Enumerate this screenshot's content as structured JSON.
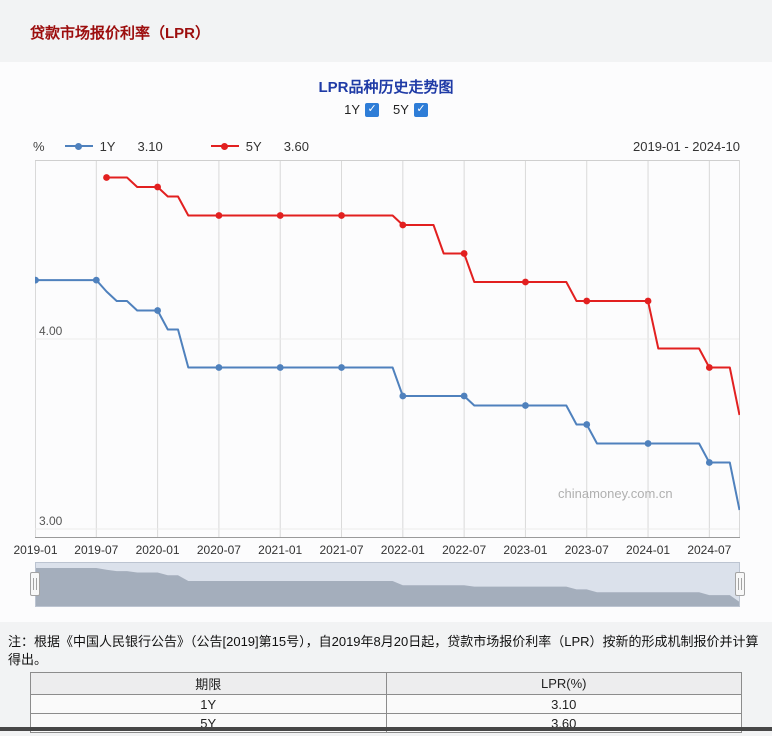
{
  "page_title": "贷款市场报价利率（LPR）",
  "controls": {
    "toggles": [
      {
        "label": "1Y",
        "checked": true
      },
      {
        "label": "5Y",
        "checked": true
      }
    ],
    "date_range": "2019-01 - 2024-10"
  },
  "chart_data": {
    "type": "line",
    "title": "LPR品种历史走势图",
    "y_label": "%",
    "xlabel": "",
    "ylim": [
      2.95,
      4.95
    ],
    "grid": "vertical",
    "legend_position": "top-left",
    "watermark": "chinamoney.com.cn",
    "x_ticks": [
      "2019-01",
      "2019-07",
      "2020-01",
      "2020-07",
      "2021-01",
      "2021-07",
      "2022-01",
      "2022-07",
      "2023-01",
      "2023-07",
      "2024-01",
      "2024-07"
    ],
    "y_ticks": [
      {
        "label": "4.00",
        "value": 4.0
      },
      {
        "label": "3.00",
        "value": 3.0
      }
    ],
    "months": [
      "2019-01",
      "2019-02",
      "2019-03",
      "2019-04",
      "2019-05",
      "2019-06",
      "2019-07",
      "2019-08",
      "2019-09",
      "2019-10",
      "2019-11",
      "2019-12",
      "2020-01",
      "2020-02",
      "2020-03",
      "2020-04",
      "2020-05",
      "2020-06",
      "2020-07",
      "2020-08",
      "2020-09",
      "2020-10",
      "2020-11",
      "2020-12",
      "2021-01",
      "2021-02",
      "2021-03",
      "2021-04",
      "2021-05",
      "2021-06",
      "2021-07",
      "2021-08",
      "2021-09",
      "2021-10",
      "2021-11",
      "2021-12",
      "2022-01",
      "2022-02",
      "2022-03",
      "2022-04",
      "2022-05",
      "2022-06",
      "2022-07",
      "2022-08",
      "2022-09",
      "2022-10",
      "2022-11",
      "2022-12",
      "2023-01",
      "2023-02",
      "2023-03",
      "2023-04",
      "2023-05",
      "2023-06",
      "2023-07",
      "2023-08",
      "2023-09",
      "2023-10",
      "2023-11",
      "2023-12",
      "2024-01",
      "2024-02",
      "2024-03",
      "2024-04",
      "2024-05",
      "2024-06",
      "2024-07",
      "2024-08",
      "2024-09",
      "2024-10"
    ],
    "series": [
      {
        "name": "1Y",
        "current": "3.10",
        "color": "#4f81bd",
        "values": [
          4.31,
          4.31,
          4.31,
          4.31,
          4.31,
          4.31,
          4.31,
          4.25,
          4.2,
          4.2,
          4.15,
          4.15,
          4.15,
          4.05,
          4.05,
          3.85,
          3.85,
          3.85,
          3.85,
          3.85,
          3.85,
          3.85,
          3.85,
          3.85,
          3.85,
          3.85,
          3.85,
          3.85,
          3.85,
          3.85,
          3.85,
          3.85,
          3.85,
          3.85,
          3.85,
          3.85,
          3.7,
          3.7,
          3.7,
          3.7,
          3.7,
          3.7,
          3.7,
          3.65,
          3.65,
          3.65,
          3.65,
          3.65,
          3.65,
          3.65,
          3.65,
          3.65,
          3.65,
          3.55,
          3.55,
          3.45,
          3.45,
          3.45,
          3.45,
          3.45,
          3.45,
          3.45,
          3.45,
          3.45,
          3.45,
          3.45,
          3.35,
          3.35,
          3.35,
          3.1
        ]
      },
      {
        "name": "5Y",
        "current": "3.60",
        "color": "#e22020",
        "values": [
          null,
          null,
          null,
          null,
          null,
          null,
          null,
          4.85,
          4.85,
          4.85,
          4.8,
          4.8,
          4.8,
          4.75,
          4.75,
          4.65,
          4.65,
          4.65,
          4.65,
          4.65,
          4.65,
          4.65,
          4.65,
          4.65,
          4.65,
          4.65,
          4.65,
          4.65,
          4.65,
          4.65,
          4.65,
          4.65,
          4.65,
          4.65,
          4.65,
          4.65,
          4.6,
          4.6,
          4.6,
          4.6,
          4.45,
          4.45,
          4.45,
          4.3,
          4.3,
          4.3,
          4.3,
          4.3,
          4.3,
          4.3,
          4.3,
          4.3,
          4.3,
          4.2,
          4.2,
          4.2,
          4.2,
          4.2,
          4.2,
          4.2,
          4.2,
          3.95,
          3.95,
          3.95,
          3.95,
          3.95,
          3.85,
          3.85,
          3.85,
          3.6
        ]
      }
    ]
  },
  "note": {
    "text": "注：根据《中国人民银行公告》（公告[2019]第15号），自2019年8月20日起，贷款市场报价利率（LPR）按新的形成机制报价并计算得出。"
  },
  "table": {
    "headers": [
      "期限",
      "LPR(%)"
    ],
    "rows": [
      [
        "1Y",
        "3.10"
      ],
      [
        "5Y",
        "3.60"
      ]
    ]
  }
}
